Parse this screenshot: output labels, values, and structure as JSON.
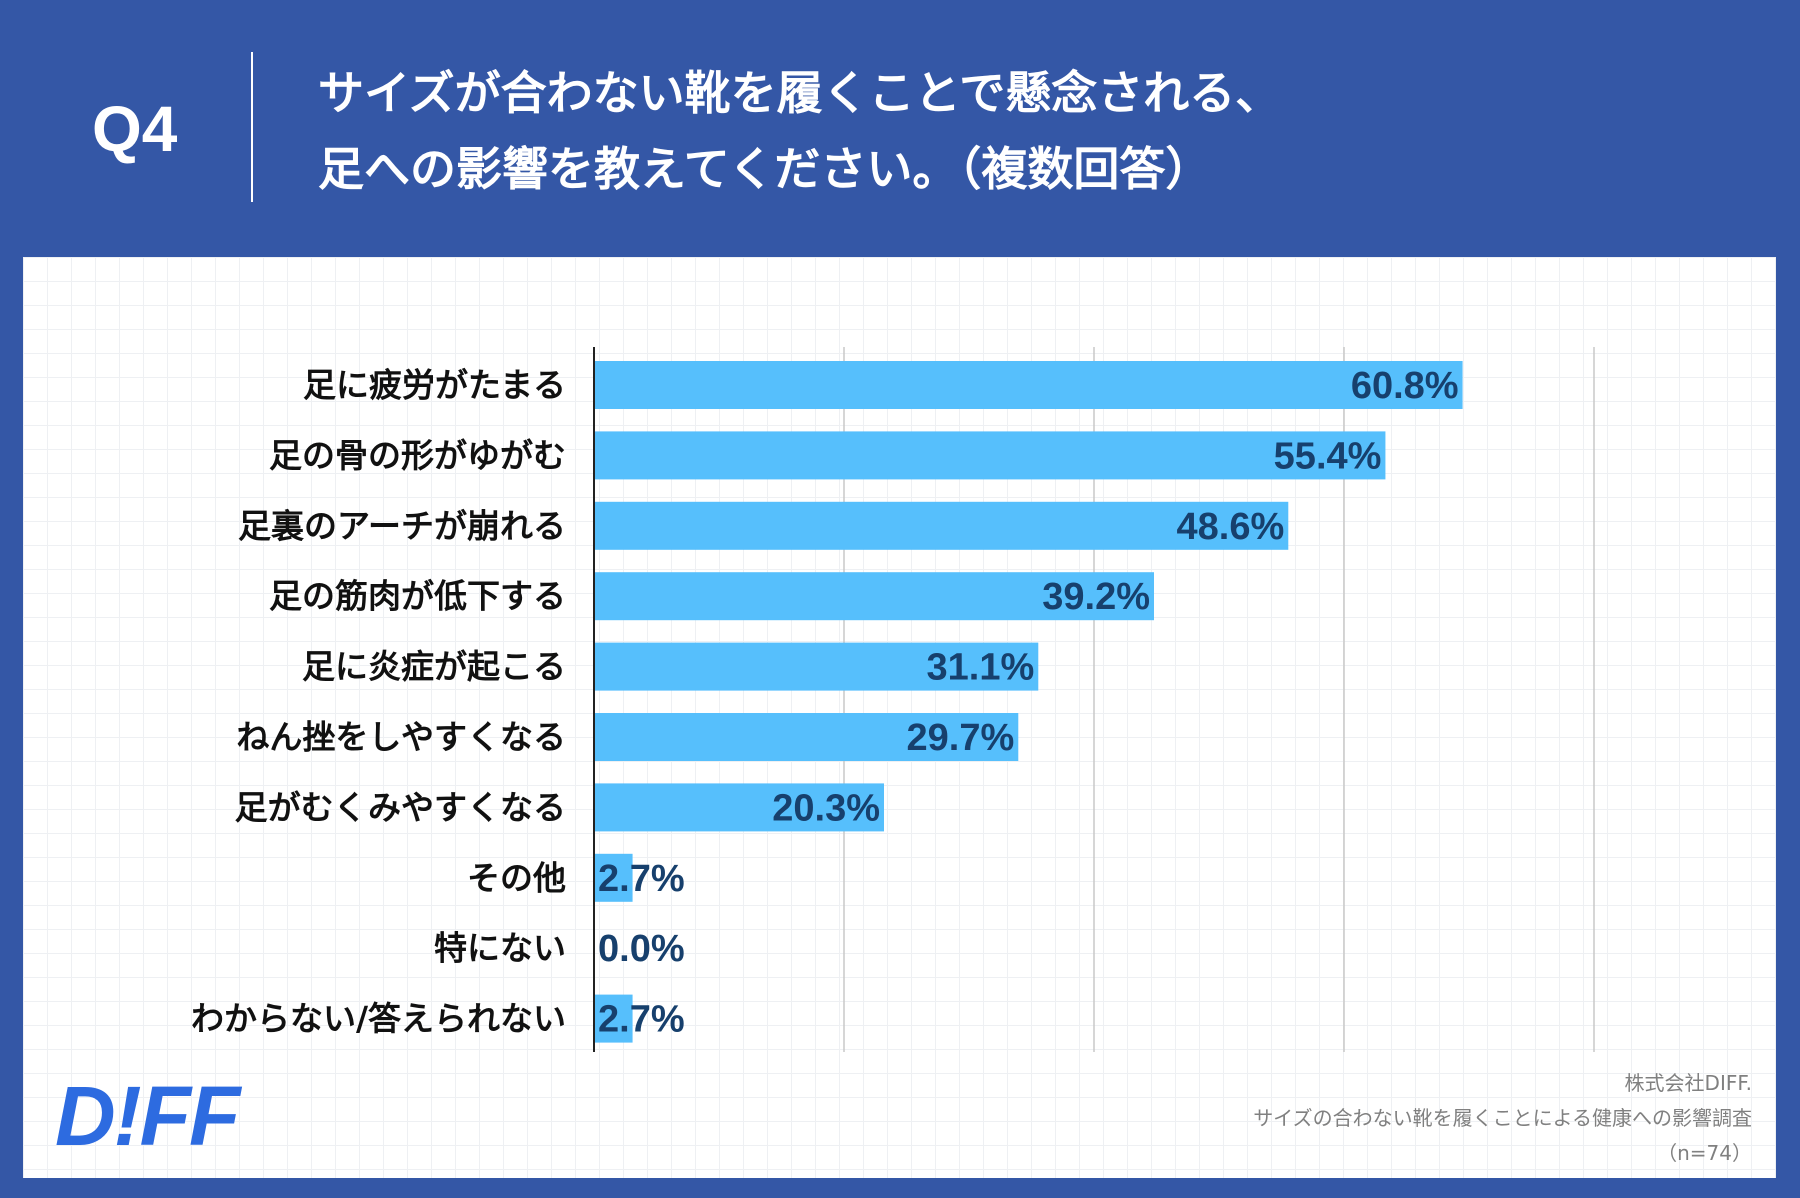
{
  "header": {
    "question": "Q4",
    "title_line1": "サイズが合わない靴を履くことで懸念される、",
    "title_line2": "足への影響を教えてください。（複数回答）"
  },
  "colors": {
    "header_bg": "#3457a6",
    "bar": "#56bffc",
    "value_text": "#17406d",
    "logo": "#2d6be0"
  },
  "chart_data": {
    "type": "bar",
    "orientation": "horizontal",
    "categories": [
      "足に疲労がたまる",
      "足の骨の形がゆがむ",
      "足裏のアーチが崩れる",
      "足の筋肉が低下する",
      "足に炎症が起こる",
      "ねん挫をしやすくなる",
      "足がむくみやすくなる",
      "その他",
      "特にない",
      "わからない/答えられない"
    ],
    "values": [
      60.8,
      55.4,
      48.6,
      39.2,
      31.1,
      29.7,
      20.3,
      2.7,
      0.0,
      2.7
    ],
    "value_labels": [
      "60.8%",
      "55.4%",
      "48.6%",
      "39.2%",
      "31.1%",
      "29.7%",
      "20.3%",
      "2.7%",
      "0.0%",
      "2.7%"
    ],
    "xlim": [
      0,
      70
    ],
    "grid_values": [
      17.5,
      35,
      52.5,
      70
    ],
    "unit": "%",
    "grid": true,
    "legend": "none"
  },
  "footer": {
    "logo": "D!FF",
    "company": "株式会社DIFF.",
    "survey": "サイズの合わない靴を履くことによる健康への影響調査",
    "sample": "（n=74）"
  }
}
